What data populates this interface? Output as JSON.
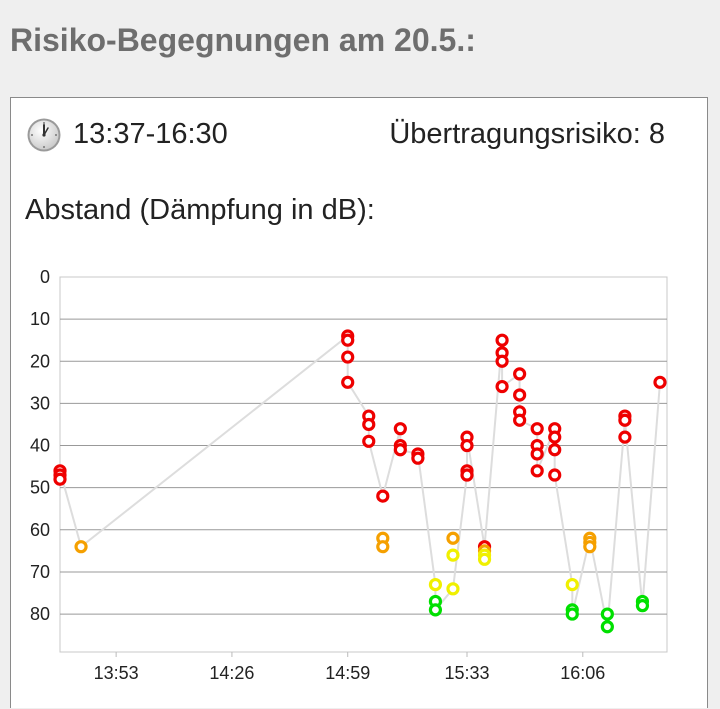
{
  "header": {
    "title": "Risiko-Begegnungen am 20.5.:"
  },
  "card": {
    "clock_icon": "clock-icon",
    "time_range": "13:37-16:30",
    "risk_text": "Übertragungsrisiko: 8",
    "section_label": "Abstand (Dämpfung in dB):"
  },
  "colors": {
    "high": "#ee0000",
    "medium": "#f5a000",
    "low": "#f0f000",
    "minimal": "#00e000",
    "line": "#dddddd",
    "grid": "#999999"
  },
  "chart_data": {
    "type": "scatter",
    "title": "",
    "xlabel": "",
    "ylabel": "",
    "y_inverted": true,
    "ylim": [
      0,
      89
    ],
    "xlim": [
      "13:37",
      "16:30"
    ],
    "y_ticks": [
      "0",
      "10",
      "20",
      "30",
      "40",
      "50",
      "60",
      "70",
      "80"
    ],
    "x_ticks": [
      "13:53",
      "14:26",
      "14:59",
      "15:33",
      "16:06"
    ],
    "grid": true,
    "series": [
      {
        "points": [
          {
            "x": "13:37",
            "y": 46,
            "level": "high"
          },
          {
            "x": "13:37",
            "y": 47,
            "level": "high"
          },
          {
            "x": "13:37",
            "y": 48,
            "level": "high"
          },
          {
            "x": "13:43",
            "y": 64,
            "level": "medium"
          },
          {
            "x": "14:59",
            "y": 14,
            "level": "high"
          },
          {
            "x": "14:59",
            "y": 15,
            "level": "high"
          },
          {
            "x": "14:59",
            "y": 19,
            "level": "high"
          },
          {
            "x": "14:59",
            "y": 25,
            "level": "high"
          },
          {
            "x": "15:05",
            "y": 33,
            "level": "high"
          },
          {
            "x": "15:05",
            "y": 35,
            "level": "high"
          },
          {
            "x": "15:05",
            "y": 39,
            "level": "high"
          },
          {
            "x": "15:09",
            "y": 52,
            "level": "high"
          },
          {
            "x": "15:09",
            "y": 62,
            "level": "medium"
          },
          {
            "x": "15:09",
            "y": 64,
            "level": "medium"
          },
          {
            "x": "15:14",
            "y": 36,
            "level": "high"
          },
          {
            "x": "15:14",
            "y": 40,
            "level": "high"
          },
          {
            "x": "15:14",
            "y": 41,
            "level": "high"
          },
          {
            "x": "15:19",
            "y": 42,
            "level": "high"
          },
          {
            "x": "15:19",
            "y": 43,
            "level": "high"
          },
          {
            "x": "15:24",
            "y": 73,
            "level": "low"
          },
          {
            "x": "15:24",
            "y": 77,
            "level": "minimal"
          },
          {
            "x": "15:24",
            "y": 79,
            "level": "minimal"
          },
          {
            "x": "15:29",
            "y": 62,
            "level": "medium"
          },
          {
            "x": "15:29",
            "y": 66,
            "level": "low"
          },
          {
            "x": "15:29",
            "y": 74,
            "level": "low"
          },
          {
            "x": "15:33",
            "y": 38,
            "level": "high"
          },
          {
            "x": "15:33",
            "y": 40,
            "level": "high"
          },
          {
            "x": "15:33",
            "y": 46,
            "level": "high"
          },
          {
            "x": "15:33",
            "y": 47,
            "level": "high"
          },
          {
            "x": "15:38",
            "y": 64,
            "level": "high"
          },
          {
            "x": "15:38",
            "y": 65,
            "level": "medium"
          },
          {
            "x": "15:38",
            "y": 66,
            "level": "low"
          },
          {
            "x": "15:38",
            "y": 67,
            "level": "low"
          },
          {
            "x": "15:43",
            "y": 15,
            "level": "high"
          },
          {
            "x": "15:43",
            "y": 18,
            "level": "high"
          },
          {
            "x": "15:43",
            "y": 20,
            "level": "high"
          },
          {
            "x": "15:43",
            "y": 26,
            "level": "high"
          },
          {
            "x": "15:48",
            "y": 23,
            "level": "high"
          },
          {
            "x": "15:48",
            "y": 28,
            "level": "high"
          },
          {
            "x": "15:48",
            "y": 32,
            "level": "high"
          },
          {
            "x": "15:48",
            "y": 34,
            "level": "high"
          },
          {
            "x": "15:53",
            "y": 36,
            "level": "high"
          },
          {
            "x": "15:53",
            "y": 40,
            "level": "high"
          },
          {
            "x": "15:53",
            "y": 42,
            "level": "high"
          },
          {
            "x": "15:53",
            "y": 46,
            "level": "high"
          },
          {
            "x": "15:58",
            "y": 36,
            "level": "high"
          },
          {
            "x": "15:58",
            "y": 38,
            "level": "high"
          },
          {
            "x": "15:58",
            "y": 41,
            "level": "high"
          },
          {
            "x": "15:58",
            "y": 47,
            "level": "high"
          },
          {
            "x": "16:03",
            "y": 73,
            "level": "low"
          },
          {
            "x": "16:03",
            "y": 79,
            "level": "minimal"
          },
          {
            "x": "16:03",
            "y": 80,
            "level": "minimal"
          },
          {
            "x": "16:08",
            "y": 62,
            "level": "medium"
          },
          {
            "x": "16:08",
            "y": 63,
            "level": "medium"
          },
          {
            "x": "16:08",
            "y": 64,
            "level": "medium"
          },
          {
            "x": "16:13",
            "y": 80,
            "level": "minimal"
          },
          {
            "x": "16:13",
            "y": 83,
            "level": "minimal"
          },
          {
            "x": "16:18",
            "y": 33,
            "level": "high"
          },
          {
            "x": "16:18",
            "y": 34,
            "level": "high"
          },
          {
            "x": "16:18",
            "y": 38,
            "level": "high"
          },
          {
            "x": "16:23",
            "y": 77,
            "level": "minimal"
          },
          {
            "x": "16:23",
            "y": 78,
            "level": "minimal"
          },
          {
            "x": "16:28",
            "y": 25,
            "level": "high"
          }
        ],
        "line_path": [
          {
            "x": "13:37",
            "y": 46
          },
          {
            "x": "13:43",
            "y": 64
          },
          {
            "x": "14:59",
            "y": 14
          },
          {
            "x": "14:59",
            "y": 25
          },
          {
            "x": "15:05",
            "y": 33
          },
          {
            "x": "15:05",
            "y": 39
          },
          {
            "x": "15:09",
            "y": 52
          },
          {
            "x": "15:14",
            "y": 36
          },
          {
            "x": "15:14",
            "y": 41
          },
          {
            "x": "15:19",
            "y": 42
          },
          {
            "x": "15:24",
            "y": 73
          },
          {
            "x": "15:24",
            "y": 79
          },
          {
            "x": "15:29",
            "y": 74
          },
          {
            "x": "15:33",
            "y": 47
          },
          {
            "x": "15:33",
            "y": 38
          },
          {
            "x": "15:38",
            "y": 64
          },
          {
            "x": "15:43",
            "y": 15
          },
          {
            "x": "15:43",
            "y": 26
          },
          {
            "x": "15:48",
            "y": 23
          },
          {
            "x": "15:48",
            "y": 34
          },
          {
            "x": "15:53",
            "y": 36
          },
          {
            "x": "15:53",
            "y": 46
          },
          {
            "x": "15:58",
            "y": 36
          },
          {
            "x": "15:58",
            "y": 47
          },
          {
            "x": "16:03",
            "y": 73
          },
          {
            "x": "16:03",
            "y": 80
          },
          {
            "x": "16:08",
            "y": 62
          },
          {
            "x": "16:13",
            "y": 83
          },
          {
            "x": "16:18",
            "y": 34
          },
          {
            "x": "16:23",
            "y": 78
          },
          {
            "x": "16:28",
            "y": 25
          }
        ]
      }
    ]
  }
}
